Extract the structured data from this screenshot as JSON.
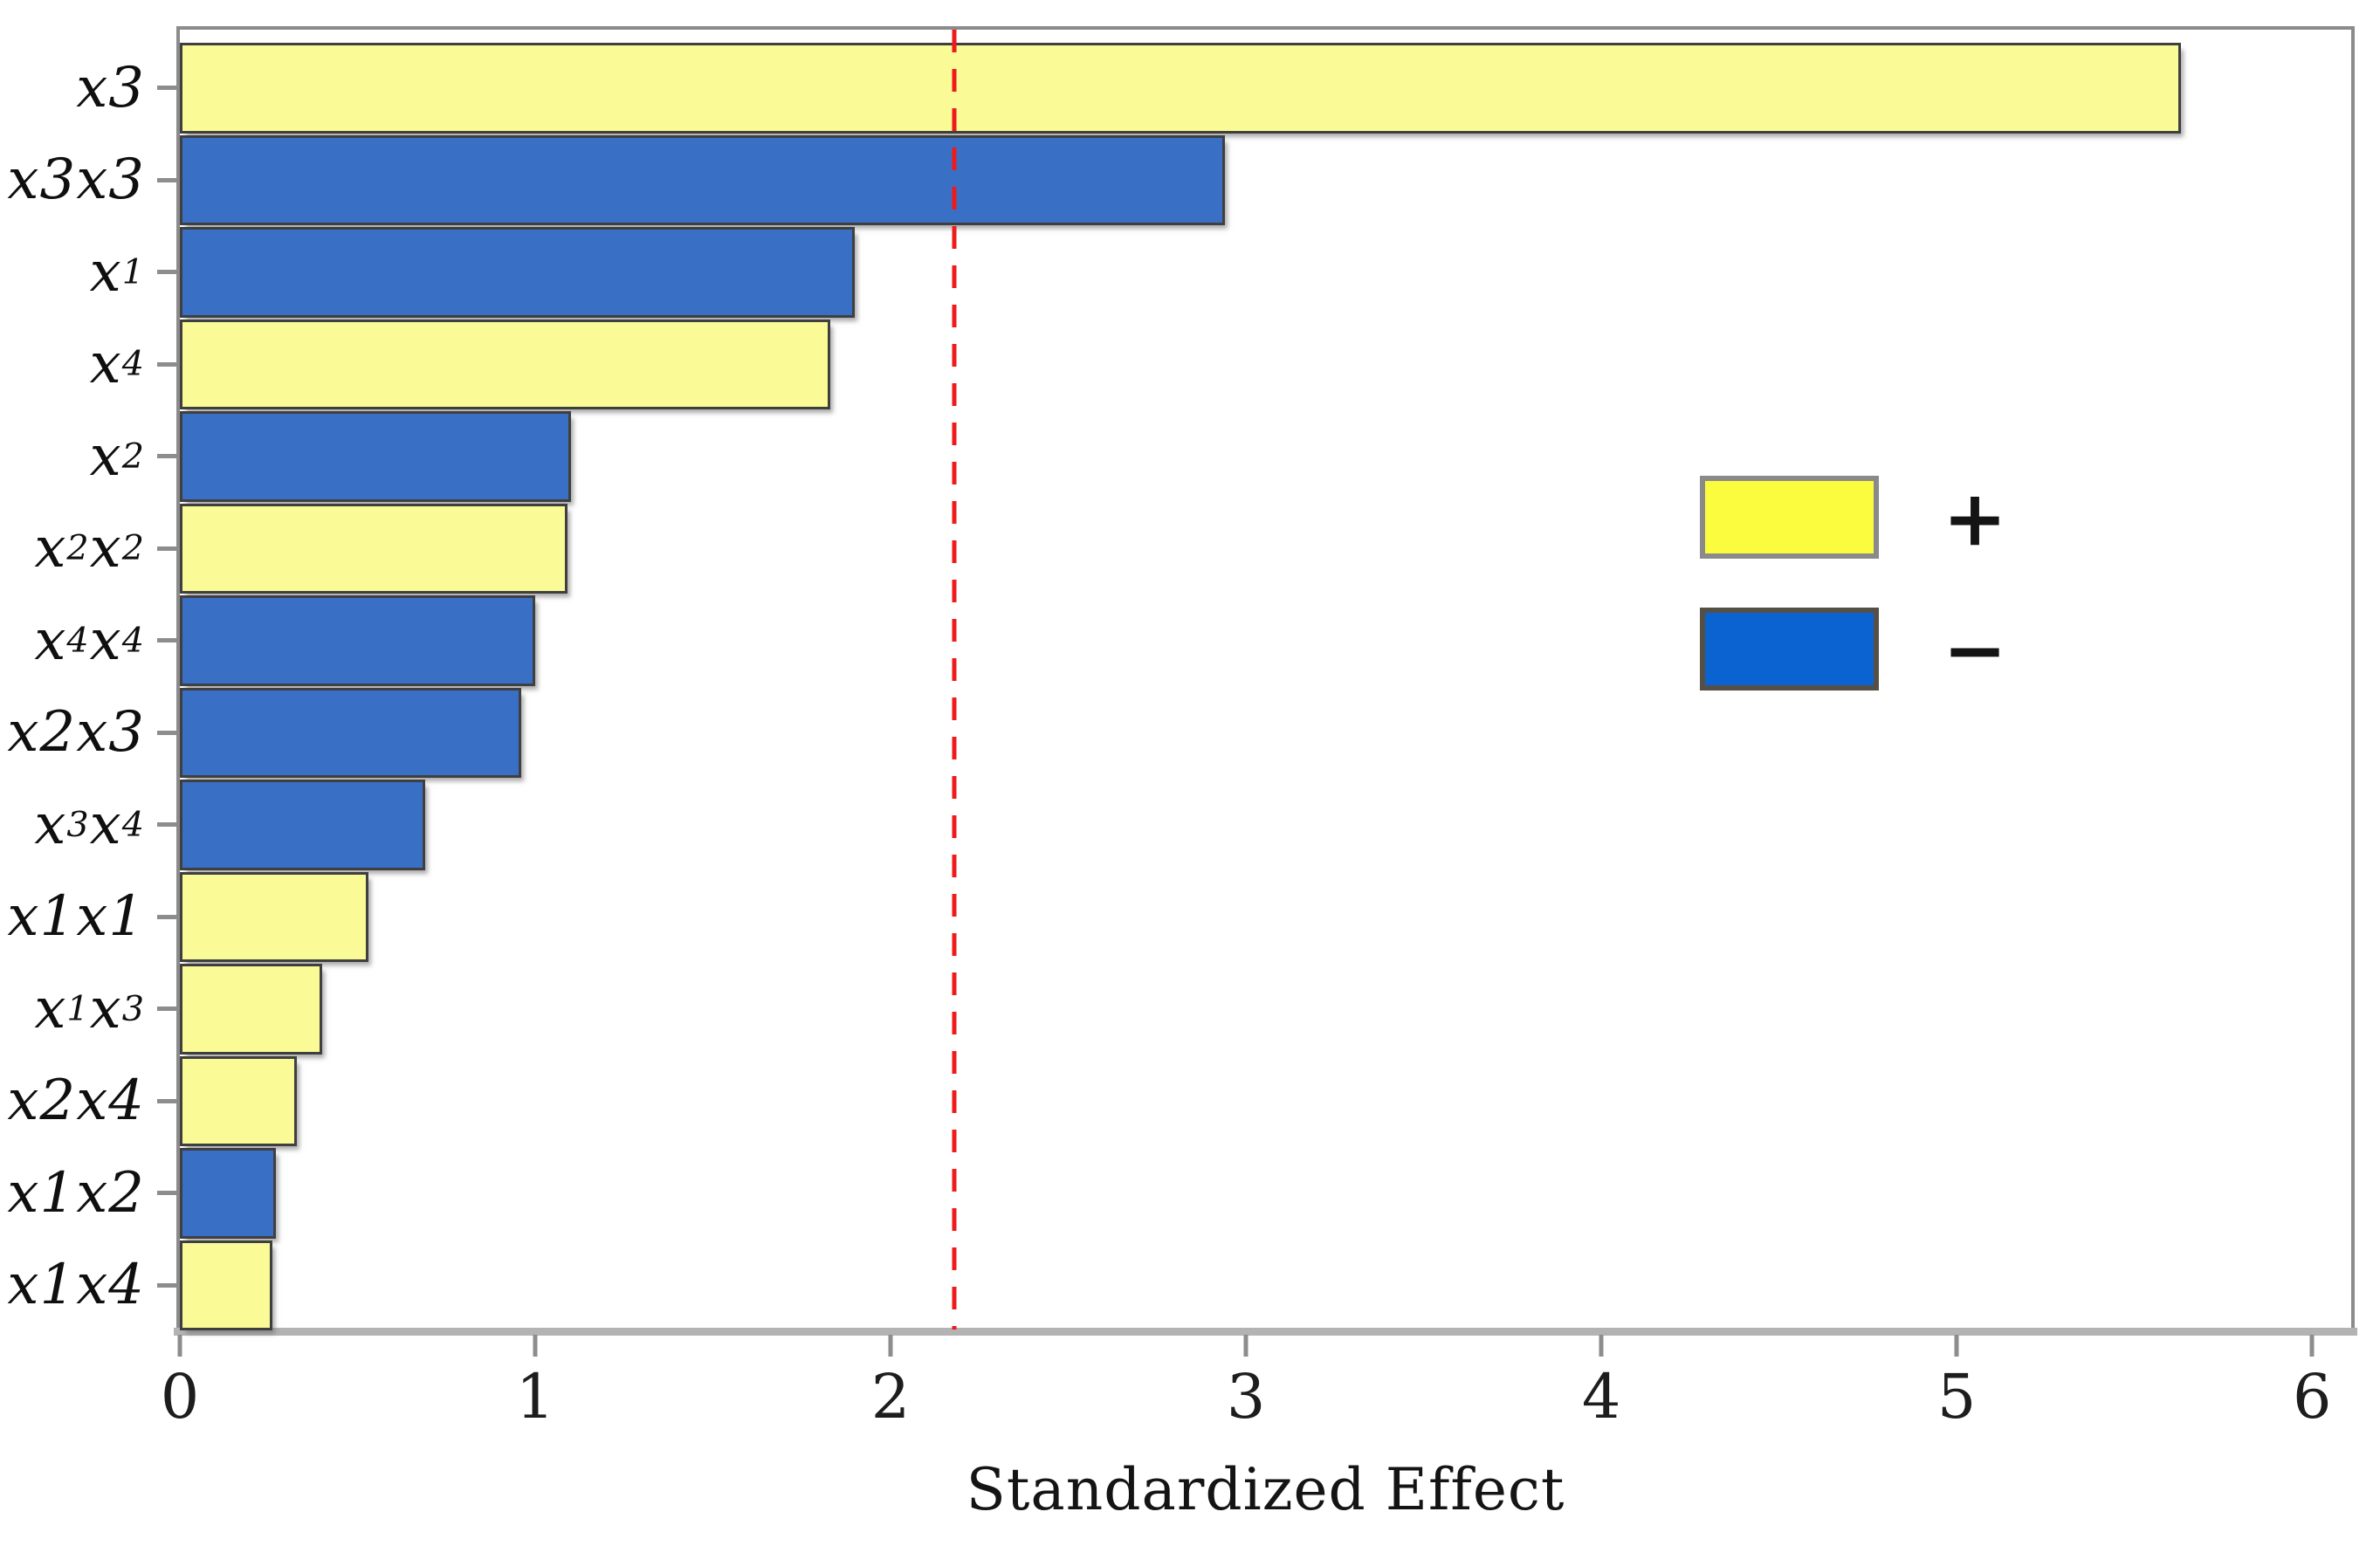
{
  "chart_data": {
    "type": "bar",
    "orientation": "horizontal",
    "title": "",
    "xlabel": "Standardized Effect",
    "ylabel": "",
    "categories": [
      "x3",
      "x3x3",
      "x₁",
      "x₄",
      "x₂",
      "x₂x₂",
      "x₄x₄",
      "x2x3",
      "x₃x₄",
      "x1x1",
      "x₁x₃",
      "x2x4",
      "x1x2",
      "x1x4"
    ],
    "values": [
      5.63,
      2.94,
      1.9,
      1.83,
      1.1,
      1.09,
      1.0,
      0.96,
      0.69,
      0.53,
      0.4,
      0.33,
      0.27,
      0.26
    ],
    "signs": [
      "+",
      "-",
      "-",
      "+",
      "-",
      "+",
      "-",
      "-",
      "-",
      "+",
      "+",
      "+",
      "-",
      "+"
    ],
    "x_ticks": [
      0,
      1,
      2,
      3,
      4,
      5,
      6
    ],
    "xlim": [
      0,
      6.11
    ],
    "reference_line": 2.18,
    "grid": false,
    "colors": {
      "positive_bar": "#fafa96",
      "negative_bar": "#3a6fc6",
      "positive_legend": "#fcfc3f",
      "negative_legend": "#0a63d1",
      "reference": "#ef1b1b",
      "bar_border": "#3f3f3f",
      "axis": "#8b8b8b"
    },
    "legend": {
      "position": "middle-right",
      "entries": [
        {
          "label": "+",
          "sign": "positive"
        },
        {
          "label": "−",
          "sign": "negative"
        }
      ]
    }
  }
}
